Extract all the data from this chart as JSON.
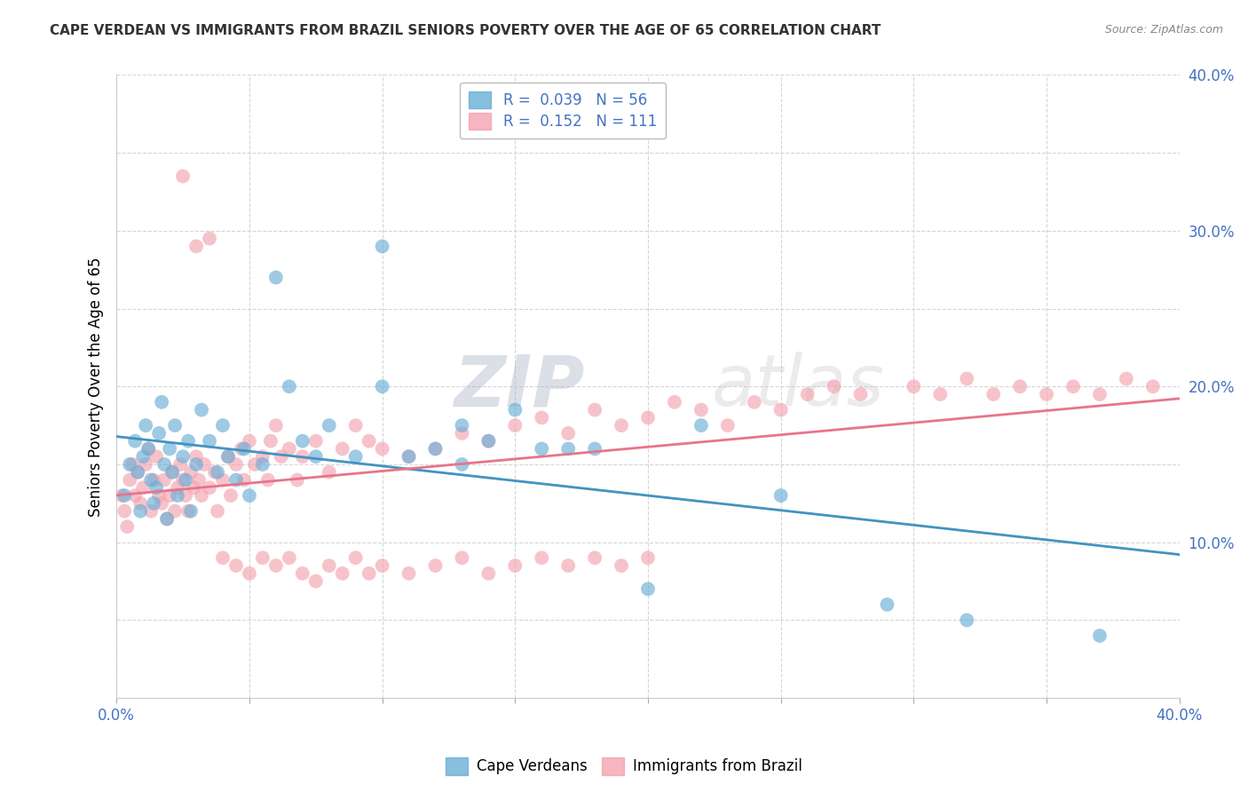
{
  "title": "CAPE VERDEAN VS IMMIGRANTS FROM BRAZIL SENIORS POVERTY OVER THE AGE OF 65 CORRELATION CHART",
  "source": "Source: ZipAtlas.com",
  "ylabel": "Seniors Poverty Over the Age of 65",
  "xlim": [
    0.0,
    0.4
  ],
  "ylim": [
    0.0,
    0.4
  ],
  "cape_verdean_R": 0.039,
  "cape_verdean_N": 56,
  "brazil_R": 0.152,
  "brazil_N": 111,
  "cape_verdean_color": "#6aaed6",
  "brazil_color": "#f4a3b0",
  "trend_cape_color": "#4393c3",
  "trend_brazil_color": "#e8748a",
  "watermark_zip": "ZIP",
  "watermark_atlas": "atlas",
  "legend_label_cape": "Cape Verdeans",
  "legend_label_brazil": "Immigrants from Brazil",
  "cape_verdean_x": [
    0.003,
    0.005,
    0.007,
    0.008,
    0.009,
    0.01,
    0.011,
    0.012,
    0.013,
    0.014,
    0.015,
    0.016,
    0.017,
    0.018,
    0.019,
    0.02,
    0.021,
    0.022,
    0.023,
    0.025,
    0.026,
    0.027,
    0.028,
    0.03,
    0.032,
    0.035,
    0.038,
    0.04,
    0.042,
    0.045,
    0.048,
    0.05,
    0.055,
    0.06,
    0.065,
    0.07,
    0.075,
    0.08,
    0.09,
    0.1,
    0.11,
    0.12,
    0.13,
    0.14,
    0.15,
    0.16,
    0.17,
    0.18,
    0.2,
    0.22,
    0.25,
    0.29,
    0.32,
    0.37,
    0.1,
    0.13
  ],
  "cape_verdean_y": [
    0.13,
    0.15,
    0.165,
    0.145,
    0.12,
    0.155,
    0.175,
    0.16,
    0.14,
    0.125,
    0.135,
    0.17,
    0.19,
    0.15,
    0.115,
    0.16,
    0.145,
    0.175,
    0.13,
    0.155,
    0.14,
    0.165,
    0.12,
    0.15,
    0.185,
    0.165,
    0.145,
    0.175,
    0.155,
    0.14,
    0.16,
    0.13,
    0.15,
    0.27,
    0.2,
    0.165,
    0.155,
    0.175,
    0.155,
    0.2,
    0.155,
    0.16,
    0.15,
    0.165,
    0.185,
    0.16,
    0.16,
    0.16,
    0.07,
    0.175,
    0.13,
    0.06,
    0.05,
    0.04,
    0.29,
    0.175
  ],
  "brazil_x": [
    0.002,
    0.003,
    0.004,
    0.005,
    0.006,
    0.007,
    0.008,
    0.009,
    0.01,
    0.011,
    0.012,
    0.013,
    0.014,
    0.015,
    0.016,
    0.017,
    0.018,
    0.019,
    0.02,
    0.021,
    0.022,
    0.023,
    0.024,
    0.025,
    0.026,
    0.027,
    0.028,
    0.029,
    0.03,
    0.031,
    0.032,
    0.033,
    0.035,
    0.037,
    0.038,
    0.04,
    0.042,
    0.043,
    0.045,
    0.047,
    0.048,
    0.05,
    0.052,
    0.055,
    0.057,
    0.058,
    0.06,
    0.062,
    0.065,
    0.068,
    0.07,
    0.075,
    0.08,
    0.085,
    0.09,
    0.095,
    0.1,
    0.11,
    0.12,
    0.13,
    0.14,
    0.15,
    0.16,
    0.17,
    0.18,
    0.19,
    0.2,
    0.21,
    0.22,
    0.23,
    0.24,
    0.25,
    0.26,
    0.27,
    0.28,
    0.3,
    0.31,
    0.32,
    0.33,
    0.34,
    0.35,
    0.36,
    0.37,
    0.38,
    0.39,
    0.025,
    0.03,
    0.035,
    0.04,
    0.045,
    0.05,
    0.055,
    0.06,
    0.065,
    0.07,
    0.075,
    0.08,
    0.085,
    0.09,
    0.095,
    0.1,
    0.11,
    0.12,
    0.13,
    0.14,
    0.15,
    0.16,
    0.17,
    0.18,
    0.19,
    0.2
  ],
  "brazil_y": [
    0.13,
    0.12,
    0.11,
    0.14,
    0.15,
    0.13,
    0.145,
    0.125,
    0.135,
    0.15,
    0.16,
    0.12,
    0.14,
    0.155,
    0.13,
    0.125,
    0.14,
    0.115,
    0.13,
    0.145,
    0.12,
    0.135,
    0.15,
    0.14,
    0.13,
    0.12,
    0.145,
    0.135,
    0.155,
    0.14,
    0.13,
    0.15,
    0.135,
    0.145,
    0.12,
    0.14,
    0.155,
    0.13,
    0.15,
    0.16,
    0.14,
    0.165,
    0.15,
    0.155,
    0.14,
    0.165,
    0.175,
    0.155,
    0.16,
    0.14,
    0.155,
    0.165,
    0.145,
    0.16,
    0.175,
    0.165,
    0.16,
    0.155,
    0.16,
    0.17,
    0.165,
    0.175,
    0.18,
    0.17,
    0.185,
    0.175,
    0.18,
    0.19,
    0.185,
    0.175,
    0.19,
    0.185,
    0.195,
    0.2,
    0.195,
    0.2,
    0.195,
    0.205,
    0.195,
    0.2,
    0.195,
    0.2,
    0.195,
    0.205,
    0.2,
    0.335,
    0.29,
    0.295,
    0.09,
    0.085,
    0.08,
    0.09,
    0.085,
    0.09,
    0.08,
    0.075,
    0.085,
    0.08,
    0.09,
    0.08,
    0.085,
    0.08,
    0.085,
    0.09,
    0.08,
    0.085,
    0.09,
    0.085,
    0.09,
    0.085,
    0.09
  ]
}
